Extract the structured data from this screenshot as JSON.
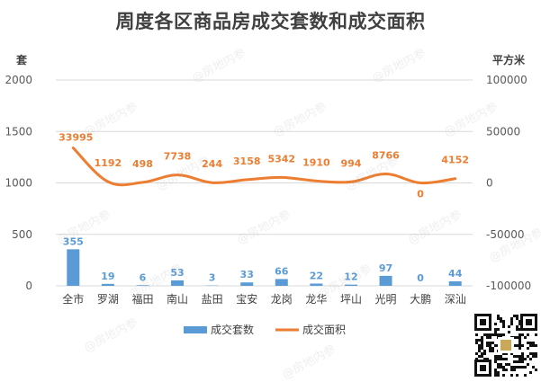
{
  "chart_data": {
    "type": "bar",
    "title": "周度各区商品房成交套数和成交面积",
    "categories": [
      "全市",
      "罗湖",
      "福田",
      "南山",
      "盐田",
      "宝安",
      "龙岗",
      "龙华",
      "坪山",
      "光明",
      "大鹏",
      "深汕"
    ],
    "y_left": {
      "label": "套",
      "ticks": [
        0,
        500,
        1000,
        1500,
        2000
      ],
      "lim": [
        0,
        2000
      ]
    },
    "y_right": {
      "label": "平方米",
      "ticks": [
        -100000,
        -50000,
        0,
        50000,
        100000
      ],
      "lim": [
        -100000,
        100000
      ]
    },
    "series": [
      {
        "name": "成交套数",
        "type": "bar",
        "axis": "left",
        "color": "#5B9BD5",
        "values": [
          355,
          19,
          6,
          53,
          3,
          33,
          66,
          22,
          12,
          97,
          0,
          44
        ]
      },
      {
        "name": "成交面积",
        "type": "line",
        "axis": "right",
        "color": "#ED7D31",
        "values": [
          33995,
          1192,
          498,
          7738,
          244,
          3158,
          5342,
          1910,
          994,
          8766,
          0,
          4152
        ]
      }
    ],
    "legend_position": "bottom",
    "grid": true
  },
  "watermark": "@房地内参"
}
